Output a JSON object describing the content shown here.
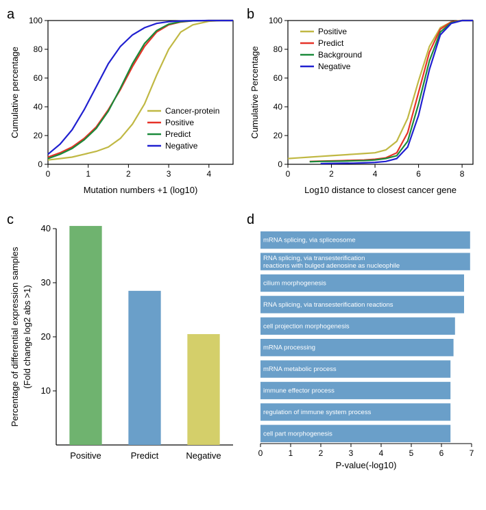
{
  "panel_a": {
    "label": "a",
    "type": "line",
    "xlabel": "Mutation numbers +1 (log10)",
    "ylabel": "Cumulative percentage",
    "xlim": [
      0,
      4.6
    ],
    "xtick_step": 1,
    "ylim": [
      0,
      100
    ],
    "ytick_step": 20,
    "line_width": 2.2,
    "label_fontsize": 13,
    "tick_fontsize": 12,
    "legend_pos": "bottom-right",
    "series": [
      {
        "name": "Cancer-protein",
        "color": "#c0b843",
        "x": [
          0,
          0.3,
          0.6,
          0.9,
          1.2,
          1.5,
          1.8,
          2.1,
          2.4,
          2.7,
          3.0,
          3.3,
          3.6,
          4.0,
          4.3,
          4.6
        ],
        "y": [
          3,
          4,
          5,
          7,
          9,
          12,
          18,
          28,
          42,
          62,
          80,
          92,
          97,
          99.5,
          100,
          100
        ]
      },
      {
        "name": "Positive",
        "color": "#e63228",
        "x": [
          0,
          0.3,
          0.6,
          0.9,
          1.2,
          1.5,
          1.8,
          2.1,
          2.4,
          2.7,
          3.0,
          3.3,
          3.6,
          4.0,
          4.3,
          4.6
        ],
        "y": [
          5,
          8,
          12,
          18,
          26,
          38,
          52,
          68,
          82,
          92,
          97,
          99,
          99.8,
          100,
          100,
          100
        ]
      },
      {
        "name": "Predict",
        "color": "#1a8a3a",
        "x": [
          0,
          0.3,
          0.6,
          0.9,
          1.2,
          1.5,
          1.8,
          2.1,
          2.4,
          2.7,
          3.0,
          3.3,
          3.6,
          4.0,
          4.3,
          4.6
        ],
        "y": [
          4,
          7,
          11,
          17,
          25,
          37,
          53,
          70,
          84,
          93,
          97.5,
          99.2,
          99.8,
          100,
          100,
          100
        ]
      },
      {
        "name": "Negative",
        "color": "#2020d0",
        "x": [
          0,
          0.3,
          0.6,
          0.9,
          1.2,
          1.5,
          1.8,
          2.1,
          2.4,
          2.7,
          3.0,
          3.3,
          3.6,
          4.0,
          4.3,
          4.6
        ],
        "y": [
          7,
          14,
          24,
          38,
          54,
          70,
          82,
          90,
          95,
          98,
          99.2,
          99.7,
          99.9,
          100,
          100,
          100
        ]
      }
    ]
  },
  "panel_b": {
    "label": "b",
    "type": "line",
    "xlabel": "Log10 distance to closest cancer gene",
    "ylabel": "Cumulative Percentage",
    "xlim": [
      0,
      8.5
    ],
    "xticks_custom": [
      0,
      2,
      4,
      6,
      8
    ],
    "ylim": [
      0,
      100
    ],
    "ytick_step": 20,
    "line_width": 2.2,
    "label_fontsize": 13,
    "tick_fontsize": 12,
    "legend_pos": "top-left",
    "series": [
      {
        "name": "Positive",
        "color": "#c0b843",
        "x": [
          0,
          0.5,
          1,
          1.5,
          2,
          2.5,
          3,
          3.5,
          4,
          4.5,
          5,
          5.5,
          6,
          6.5,
          7,
          7.5,
          8,
          8.5
        ],
        "y": [
          4,
          4.5,
          5,
          5.5,
          6,
          6.5,
          7,
          7.5,
          8,
          10,
          16,
          32,
          58,
          82,
          95,
          99,
          100,
          100
        ]
      },
      {
        "name": "Predict",
        "color": "#e63228",
        "x": [
          1,
          1.5,
          2,
          2.5,
          3,
          3.5,
          4,
          4.5,
          5,
          5.5,
          6,
          6.5,
          7,
          7.5,
          8,
          8.5
        ],
        "y": [
          2,
          2.2,
          2.4,
          2.6,
          2.8,
          3,
          3.5,
          4.5,
          8,
          22,
          50,
          78,
          94,
          99,
          100,
          100
        ]
      },
      {
        "name": "Background",
        "color": "#1a8a3a",
        "x": [
          1,
          1.5,
          2,
          2.5,
          3,
          3.5,
          4,
          4.5,
          5,
          5.5,
          6,
          6.5,
          7,
          7.5,
          8,
          8.5
        ],
        "y": [
          1.8,
          2,
          2.1,
          2.2,
          2.4,
          2.6,
          3,
          4,
          6,
          16,
          42,
          72,
          92,
          98.5,
          100,
          100
        ]
      },
      {
        "name": "Negative",
        "color": "#2020d0",
        "x": [
          1.5,
          2,
          2.5,
          3,
          3.5,
          4,
          4.5,
          5,
          5.5,
          6,
          6.5,
          7,
          7.5,
          8,
          8.5
        ],
        "y": [
          0.5,
          0.6,
          0.7,
          0.8,
          1,
          1.3,
          2,
          4,
          12,
          34,
          66,
          90,
          98,
          100,
          100
        ]
      }
    ]
  },
  "panel_c": {
    "label": "c",
    "type": "bar",
    "ylabel_line1": "Percentage of differential expression samples",
    "ylabel_line2": "(Fold change log2 abs >1)",
    "ylim": [
      0,
      40
    ],
    "ytick_step": 10,
    "label_fontsize": 13,
    "tick_fontsize": 13,
    "bar_width": 0.55,
    "categories": [
      "Positive",
      "Predict",
      "Negative"
    ],
    "values": [
      40.5,
      28.5,
      20.5
    ],
    "colors": [
      "#6fb36f",
      "#6a9fc9",
      "#d4cf6a"
    ]
  },
  "panel_d": {
    "label": "d",
    "type": "horizontal_bar",
    "xlabel": "P-value(-log10)",
    "xlim": [
      0,
      7
    ],
    "xtick_step": 1,
    "bar_color": "#6a9fc9",
    "text_color": "#ffffff",
    "label_fontsize": 13,
    "tick_fontsize": 12,
    "bar_text_fontsize": 9.5,
    "bars": [
      {
        "label": "mRNA splicing, via spliceosome",
        "value": 6.95
      },
      {
        "label": "RNA splicing, via transesterification reactions with bulged adenosine as nucleophile",
        "value": 6.95,
        "wrap": true
      },
      {
        "label": "cilium morphogenesis",
        "value": 6.75
      },
      {
        "label": "RNA splicing, via transesterification reactions",
        "value": 6.75
      },
      {
        "label": "cell projection morphogenesis",
        "value": 6.45
      },
      {
        "label": "mRNA processing",
        "value": 6.4
      },
      {
        "label": "mRNA metabolic process",
        "value": 6.3
      },
      {
        "label": "immune effector process",
        "value": 6.3
      },
      {
        "label": "regulation of immune system process",
        "value": 6.3
      },
      {
        "label": "cell part morphogenesis",
        "value": 6.3
      }
    ]
  }
}
